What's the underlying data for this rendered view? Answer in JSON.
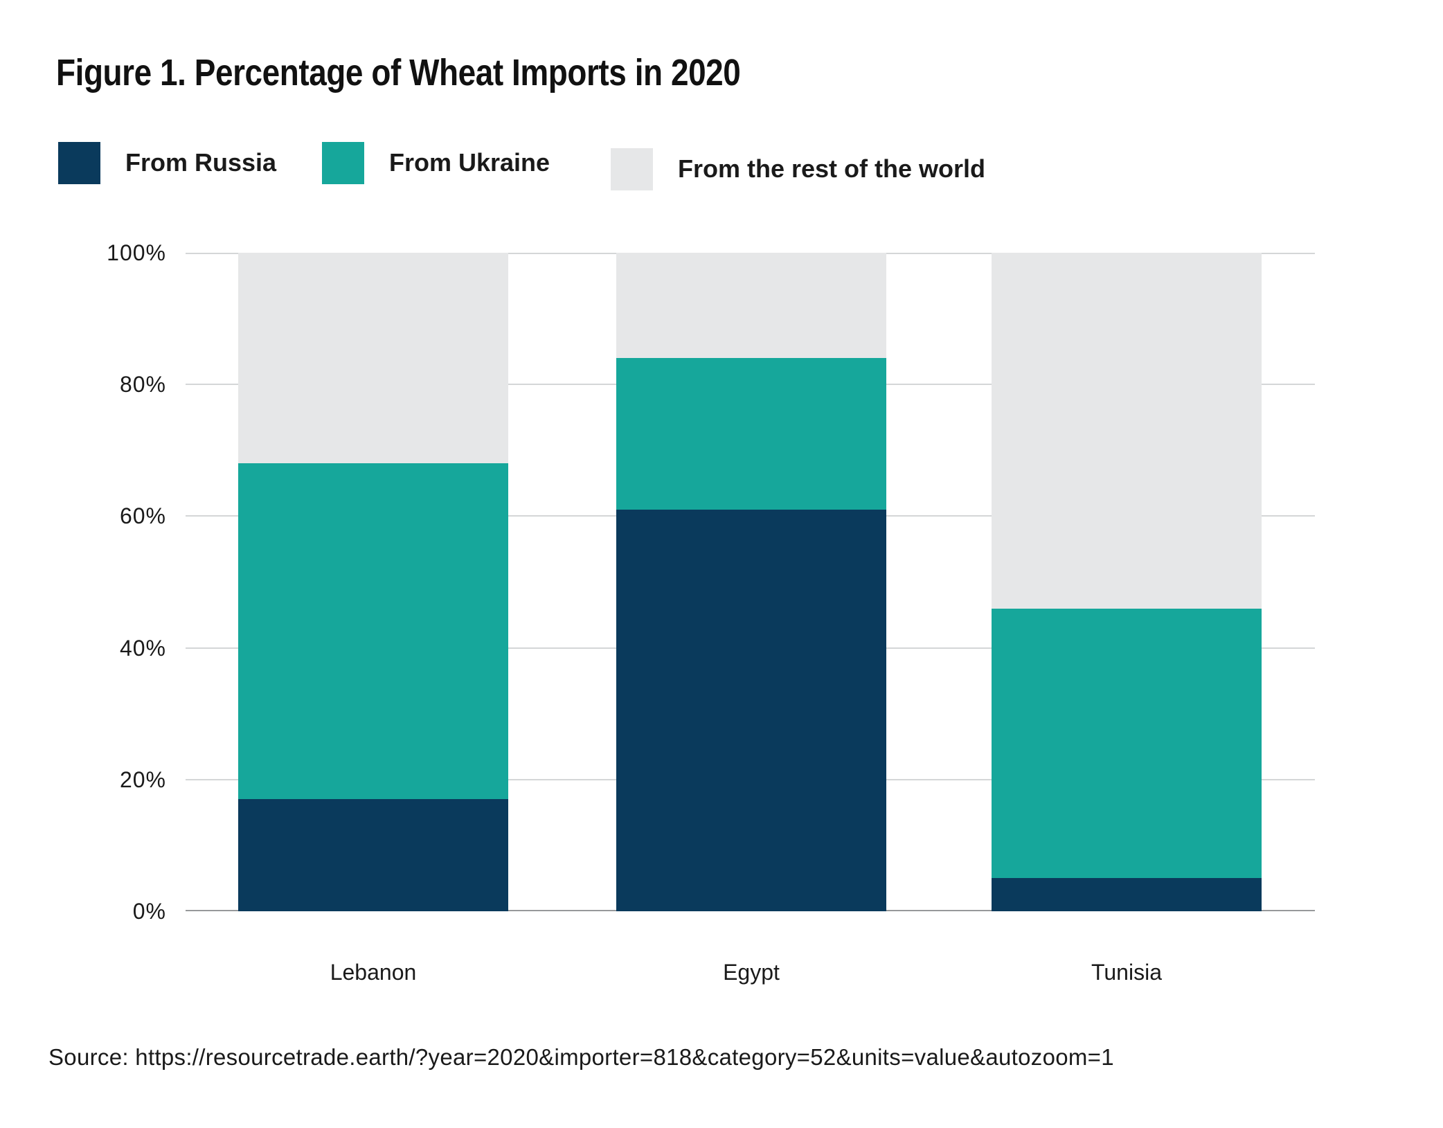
{
  "page": {
    "title": "Figure 1. Percentage of Wheat Imports in 2020",
    "source_line": "Source: https://resourcetrade.earth/?year=2020&importer=818&category=52&units=value&autozoom=1"
  },
  "legend": {
    "items": [
      {
        "label": "From Russia",
        "color": "#0A3A5C"
      },
      {
        "label": "From Ukraine",
        "color": "#16A79B"
      },
      {
        "label": "From the rest of the world",
        "color": "#E6E7E8"
      }
    ]
  },
  "chart_data": {
    "type": "bar",
    "stacked": true,
    "title": "Figure 1. Percentage of Wheat Imports in 2020",
    "categories": [
      "Lebanon",
      "Egypt",
      "Tunisia"
    ],
    "series": [
      {
        "name": "From Russia",
        "color": "#0A3A5C",
        "values": [
          17,
          61,
          5
        ]
      },
      {
        "name": "From Ukraine",
        "color": "#16A79B",
        "values": [
          51,
          23,
          41
        ]
      },
      {
        "name": "From the rest of the world",
        "color": "#E6E7E8",
        "values": [
          32,
          16,
          54
        ]
      }
    ],
    "xlabel": "",
    "ylabel": "",
    "ylim": [
      0,
      100
    ],
    "yticks": [
      "0%",
      "20%",
      "40%",
      "60%",
      "80%",
      "100%"
    ],
    "grid": true,
    "legend_position": "top",
    "colors": {
      "grid_line": "#D4D6D7",
      "axis_line": "#97999B",
      "text": "#1A1A1A"
    }
  }
}
